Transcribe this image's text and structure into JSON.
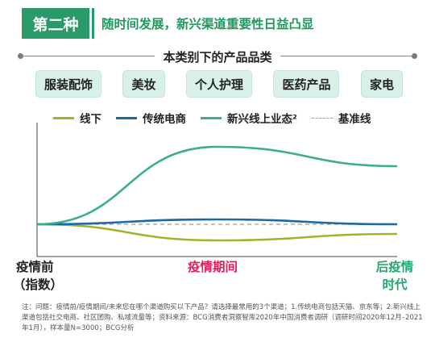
{
  "header": {
    "tag": "第二种",
    "title": "随时间发展，新兴渠道重要性日益凸显"
  },
  "section_title": "本类别下的产品品类",
  "categories": [
    "服装配饰",
    "美妆",
    "个人护理",
    "医药产品",
    "家电"
  ],
  "legend": [
    {
      "label": "线下",
      "color": "#a3b22d"
    },
    {
      "label": "传统电商",
      "color": "#1b6aa5"
    },
    {
      "label": "新兴线上业态²",
      "color": "#3aae84"
    },
    {
      "label": "基准线",
      "color": "#9a9a9a"
    }
  ],
  "x_labels": {
    "left_line1": "疫情前",
    "left_line2": "（指数）",
    "middle": "疫情期间",
    "right_line1": "后疫情",
    "right_line2": "时代"
  },
  "footnote": "注：问题：疫情前/疫情期间/未来您在哪个渠道购买以下产品？请选择最常用的3个渠道；1.传统电商包括天猫、京东等；2.新兴线上渠道包括社交电商、社区团购、私域流量等；资料来源：BCG消费者洞察智库2020年中国消费者调研（调研时间2020年12月–2021年1月），样本量N=3000；BCG分析",
  "chart_data": {
    "type": "line",
    "x": [
      "疫情前",
      "疫情期间",
      "后疫情时代"
    ],
    "baseline": 0,
    "series": [
      {
        "name": "线下",
        "color": "#a3b22d",
        "x": [
          0,
          0.5,
          1
        ],
        "values": [
          0,
          -10,
          -6
        ]
      },
      {
        "name": "传统电商",
        "color": "#1b6aa5",
        "x": [
          0,
          0.5,
          1
        ],
        "values": [
          0,
          3,
          0
        ]
      },
      {
        "name": "新兴线上业态²",
        "color": "#3aae84",
        "x": [
          0,
          0.5,
          1
        ],
        "values": [
          0,
          48,
          36
        ]
      },
      {
        "name": "基准线",
        "color": "#9a9a9a",
        "x": [
          0,
          1
        ],
        "values": [
          0,
          0
        ],
        "dashed": true
      }
    ],
    "ylim": [
      -20,
      60
    ],
    "axes_visible": false
  }
}
